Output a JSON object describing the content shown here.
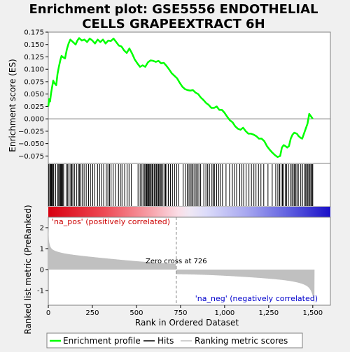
{
  "chart_data": {
    "type": "line",
    "title": "Enrichment plot: GSE5556 ENDOTHELIAL CELLS GRAPEEXTRACT 6H",
    "title_lines": [
      "Enrichment plot: GSE5556 ENDOTHELIAL",
      "CELLS GRAPEEXTRACT 6H"
    ],
    "xlabel": "Rank in Ordered Dataset",
    "top_ylabel": "Enrichment score (ES)",
    "bottom_ylabel": "Ranked list metric (PreRanked)",
    "xlim": [
      0,
      1600
    ],
    "es_ylim": [
      -0.09,
      0.175
    ],
    "metric_ylim": [
      -1.7,
      2.5
    ],
    "x_ticks": [
      0,
      250,
      500,
      750,
      1000,
      1250,
      1500
    ],
    "x_tick_labels": [
      "0",
      "250",
      "500",
      "750",
      "1,000",
      "1,250",
      "1,500"
    ],
    "es_ticks": [
      -0.075,
      -0.05,
      -0.025,
      0.0,
      0.025,
      0.05,
      0.075,
      0.1,
      0.125,
      0.15,
      0.175
    ],
    "es_tick_labels": [
      "−0.075",
      "−0.050",
      "−0.025",
      "0.000",
      "0.025",
      "0.050",
      "0.075",
      "0.100",
      "0.125",
      "0.150",
      "0.175"
    ],
    "metric_ticks": [
      -1,
      0,
      1,
      2
    ],
    "metric_tick_labels": [
      "-1",
      "0",
      "1",
      "2"
    ],
    "es_points": [
      [
        0,
        0.025
      ],
      [
        5,
        0.04
      ],
      [
        10,
        0.035
      ],
      [
        15,
        0.05
      ],
      [
        22,
        0.065
      ],
      [
        28,
        0.077
      ],
      [
        35,
        0.072
      ],
      [
        45,
        0.068
      ],
      [
        52,
        0.09
      ],
      [
        60,
        0.105
      ],
      [
        68,
        0.118
      ],
      [
        75,
        0.127
      ],
      [
        85,
        0.124
      ],
      [
        95,
        0.122
      ],
      [
        105,
        0.14
      ],
      [
        115,
        0.152
      ],
      [
        125,
        0.16
      ],
      [
        140,
        0.155
      ],
      [
        155,
        0.15
      ],
      [
        165,
        0.158
      ],
      [
        175,
        0.163
      ],
      [
        190,
        0.158
      ],
      [
        205,
        0.16
      ],
      [
        220,
        0.155
      ],
      [
        235,
        0.162
      ],
      [
        250,
        0.158
      ],
      [
        265,
        0.152
      ],
      [
        280,
        0.16
      ],
      [
        295,
        0.155
      ],
      [
        310,
        0.16
      ],
      [
        325,
        0.152
      ],
      [
        340,
        0.158
      ],
      [
        355,
        0.157
      ],
      [
        370,
        0.162
      ],
      [
        385,
        0.155
      ],
      [
        400,
        0.148
      ],
      [
        415,
        0.146
      ],
      [
        430,
        0.138
      ],
      [
        445,
        0.133
      ],
      [
        460,
        0.142
      ],
      [
        475,
        0.132
      ],
      [
        490,
        0.12
      ],
      [
        505,
        0.112
      ],
      [
        520,
        0.105
      ],
      [
        535,
        0.108
      ],
      [
        550,
        0.105
      ],
      [
        565,
        0.114
      ],
      [
        580,
        0.118
      ],
      [
        595,
        0.117
      ],
      [
        610,
        0.115
      ],
      [
        625,
        0.117
      ],
      [
        640,
        0.112
      ],
      [
        655,
        0.113
      ],
      [
        670,
        0.107
      ],
      [
        685,
        0.1
      ],
      [
        700,
        0.092
      ],
      [
        715,
        0.087
      ],
      [
        730,
        0.082
      ],
      [
        745,
        0.073
      ],
      [
        760,
        0.065
      ],
      [
        775,
        0.06
      ],
      [
        790,
        0.058
      ],
      [
        805,
        0.057
      ],
      [
        820,
        0.058
      ],
      [
        835,
        0.053
      ],
      [
        850,
        0.05
      ],
      [
        865,
        0.043
      ],
      [
        880,
        0.038
      ],
      [
        895,
        0.032
      ],
      [
        910,
        0.028
      ],
      [
        925,
        0.022
      ],
      [
        940,
        0.022
      ],
      [
        955,
        0.025
      ],
      [
        970,
        0.018
      ],
      [
        985,
        0.018
      ],
      [
        1000,
        0.012
      ],
      [
        1015,
        0.004
      ],
      [
        1030,
        -0.003
      ],
      [
        1045,
        -0.007
      ],
      [
        1060,
        -0.015
      ],
      [
        1075,
        -0.02
      ],
      [
        1090,
        -0.022
      ],
      [
        1105,
        -0.018
      ],
      [
        1120,
        -0.025
      ],
      [
        1135,
        -0.03
      ],
      [
        1150,
        -0.03
      ],
      [
        1165,
        -0.032
      ],
      [
        1180,
        -0.035
      ],
      [
        1195,
        -0.04
      ],
      [
        1210,
        -0.04
      ],
      [
        1225,
        -0.045
      ],
      [
        1240,
        -0.055
      ],
      [
        1255,
        -0.062
      ],
      [
        1270,
        -0.068
      ],
      [
        1285,
        -0.073
      ],
      [
        1300,
        -0.077
      ],
      [
        1315,
        -0.075
      ],
      [
        1325,
        -0.058
      ],
      [
        1335,
        -0.053
      ],
      [
        1345,
        -0.055
      ],
      [
        1355,
        -0.058
      ],
      [
        1365,
        -0.055
      ],
      [
        1375,
        -0.04
      ],
      [
        1385,
        -0.032
      ],
      [
        1395,
        -0.028
      ],
      [
        1410,
        -0.03
      ],
      [
        1420,
        -0.035
      ],
      [
        1430,
        -0.038
      ],
      [
        1440,
        -0.04
      ],
      [
        1450,
        -0.03
      ],
      [
        1460,
        -0.02
      ],
      [
        1470,
        -0.01
      ],
      [
        1480,
        0.01
      ],
      [
        1490,
        0.005
      ],
      [
        1500,
        0.0
      ]
    ],
    "hits": [
      3,
      9,
      14,
      18,
      23,
      27,
      31,
      42,
      54,
      59,
      64,
      69,
      73,
      77,
      82,
      87,
      102,
      110,
      118,
      127,
      133,
      139,
      148,
      160,
      170,
      176,
      183,
      192,
      203,
      215,
      228,
      239,
      252,
      264,
      279,
      291,
      303,
      314,
      329,
      338,
      347,
      356,
      368,
      381,
      398,
      409,
      418,
      433,
      447,
      458,
      471,
      509,
      521,
      531,
      538,
      547,
      553,
      558,
      563,
      568,
      572,
      577,
      583,
      589,
      594,
      601,
      607,
      613,
      619,
      625,
      631,
      636,
      642,
      650,
      657,
      665,
      672,
      681,
      693,
      704,
      716,
      728,
      739,
      765,
      778,
      788,
      798,
      806,
      814,
      821,
      830,
      838,
      846,
      854,
      864,
      882,
      894,
      904,
      914,
      928,
      935,
      942,
      955,
      967,
      976,
      988,
      1008,
      1028,
      1044,
      1056,
      1068,
      1086,
      1098,
      1108,
      1122,
      1138,
      1152,
      1166,
      1178,
      1192,
      1206,
      1222,
      1246,
      1270,
      1290,
      1302,
      1312,
      1320,
      1328,
      1336,
      1344,
      1352,
      1362,
      1372,
      1382,
      1389,
      1396,
      1403,
      1410,
      1418,
      1432,
      1442,
      1452,
      1460,
      1466,
      1472,
      1478,
      1484,
      1490,
      1496,
      1500
    ],
    "total_ranks": 1510,
    "zero_cross_rank": 726,
    "zero_cross_label": "Zero cross at 726",
    "pos_label": "'na_pos' (positively correlated)",
    "neg_label": "'na_neg' (negatively correlated)",
    "legend": [
      "Enrichment profile",
      "Hits",
      "Ranking metric scores"
    ],
    "legend_placement": "bottom",
    "colors": {
      "enrichment": "#00ff00",
      "hits": "#000000",
      "metric": "#c0c0c0",
      "zero_line": "#808080",
      "pos_label": "#cc0000",
      "neg_label": "#0000cc",
      "heat_pos": "#e8202a",
      "heat_neg": "#2418d8"
    }
  }
}
